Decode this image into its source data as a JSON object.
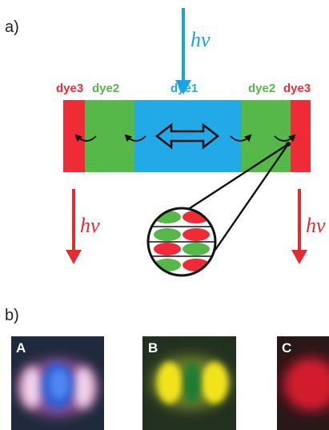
{
  "panel_a": {
    "label": "a)",
    "segments": [
      {
        "name": "dye3",
        "color": "#ee2b36"
      },
      {
        "name": "dye2",
        "color": "#55b848"
      },
      {
        "name": "dye1",
        "color": "#22a9e8"
      },
      {
        "name": "dye2",
        "color": "#55b848"
      },
      {
        "name": "dye3",
        "color": "#ee2b36"
      }
    ],
    "excitation": {
      "label": "hν",
      "color": "#1aa3e2"
    },
    "emission_left": {
      "label": "hν",
      "color": "#e22b33"
    },
    "emission_right": {
      "label": "hν",
      "color": "#e22b33"
    }
  },
  "panel_b": {
    "label": "b)",
    "images": [
      {
        "label": "A"
      },
      {
        "label": "B"
      },
      {
        "label": "C"
      }
    ]
  }
}
